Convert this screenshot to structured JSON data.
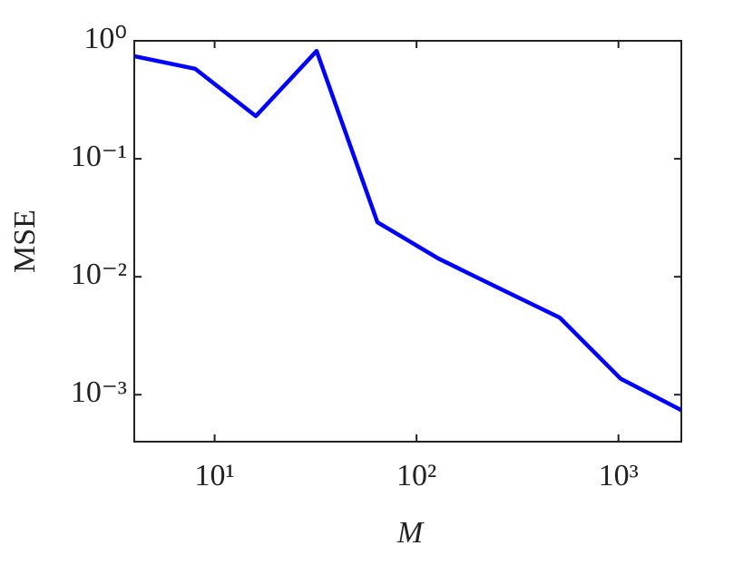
{
  "chart_data": {
    "type": "line",
    "xlabel": "M",
    "ylabel": "MSE",
    "x": [
      4,
      8,
      16,
      32,
      64,
      128,
      256,
      512,
      1024,
      2048
    ],
    "series": [
      {
        "color": "#0000ff",
        "values": [
          0.74,
          0.58,
          0.23,
          0.82,
          0.029,
          0.0143,
          0.008,
          0.0045,
          0.00137,
          0.00074
        ]
      }
    ],
    "xscale": "log",
    "yscale": "log",
    "xlim": [
      4,
      2048
    ],
    "ylim": [
      0.0004,
      1
    ],
    "xticks": [
      {
        "value": 10,
        "label": "10¹"
      },
      {
        "value": 100,
        "label": "10²"
      },
      {
        "value": 1000,
        "label": "10³"
      }
    ],
    "yticks": [
      {
        "value": 0.001,
        "label": "10⁻³"
      },
      {
        "value": 0.01,
        "label": "10⁻²"
      },
      {
        "value": 0.1,
        "label": "10⁻¹"
      },
      {
        "value": 1,
        "label": "10⁰"
      }
    ]
  }
}
